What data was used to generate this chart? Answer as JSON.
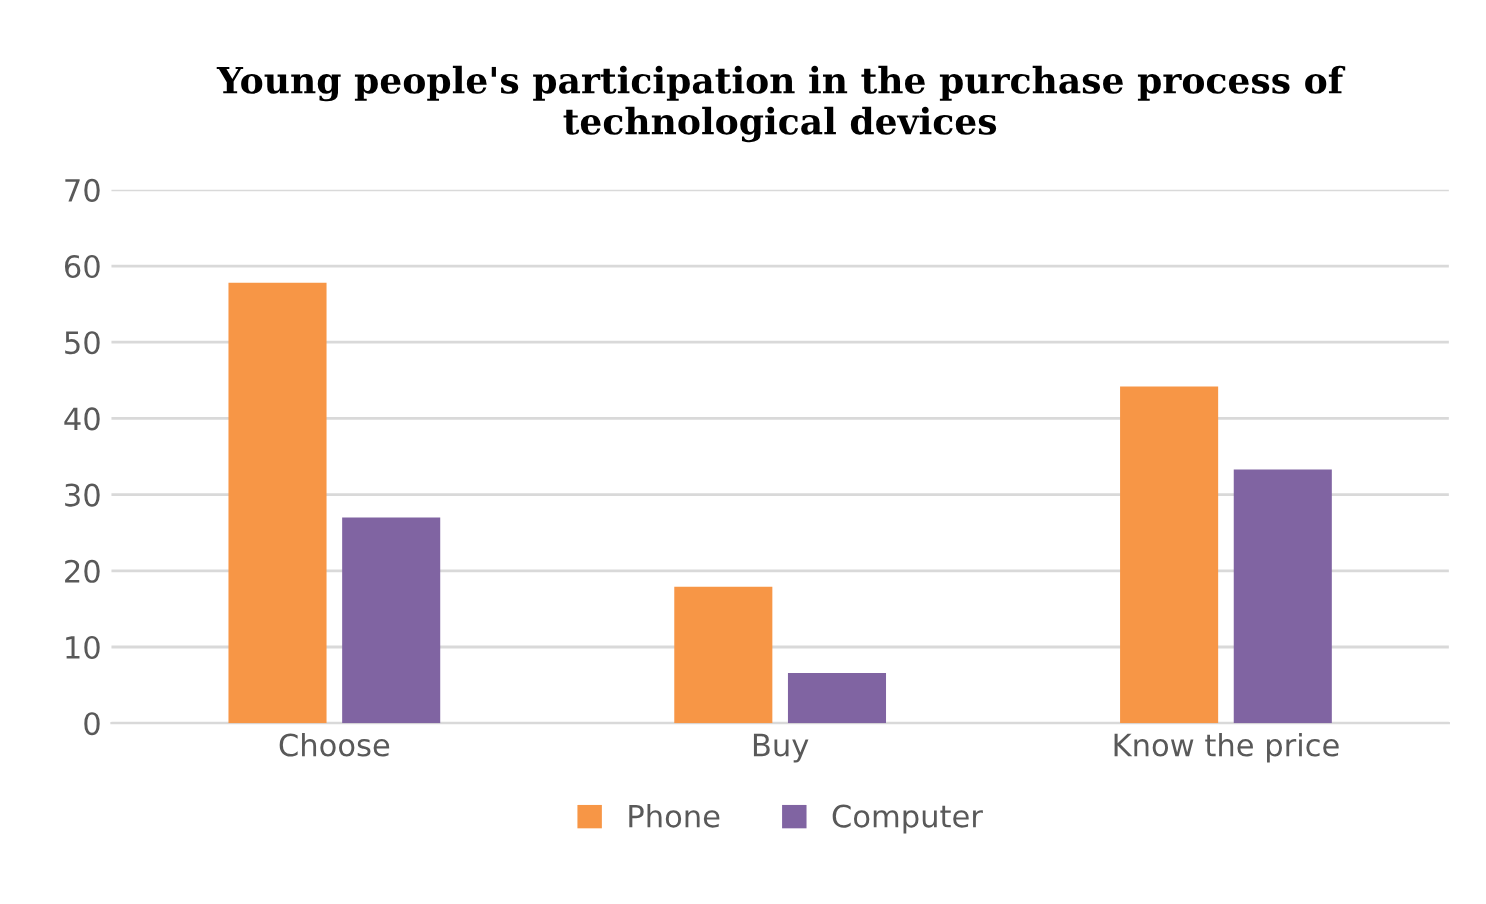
{
  "chart_data": {
    "type": "bar",
    "title": "Young people's participation in the purchase process of technological devices",
    "categories": [
      "Choose",
      "Buy",
      "Know the price"
    ],
    "series": [
      {
        "name": "Phone",
        "color": "#f79646",
        "values": [
          57.8,
          17.9,
          44.2
        ]
      },
      {
        "name": "Computer",
        "color": "#8064a2",
        "values": [
          27.0,
          6.6,
          33.3
        ]
      }
    ],
    "ylim": [
      0,
      70
    ],
    "yticks": [
      0,
      10,
      20,
      30,
      40,
      50,
      60,
      70
    ],
    "grid": "y",
    "legend": "bottom"
  }
}
